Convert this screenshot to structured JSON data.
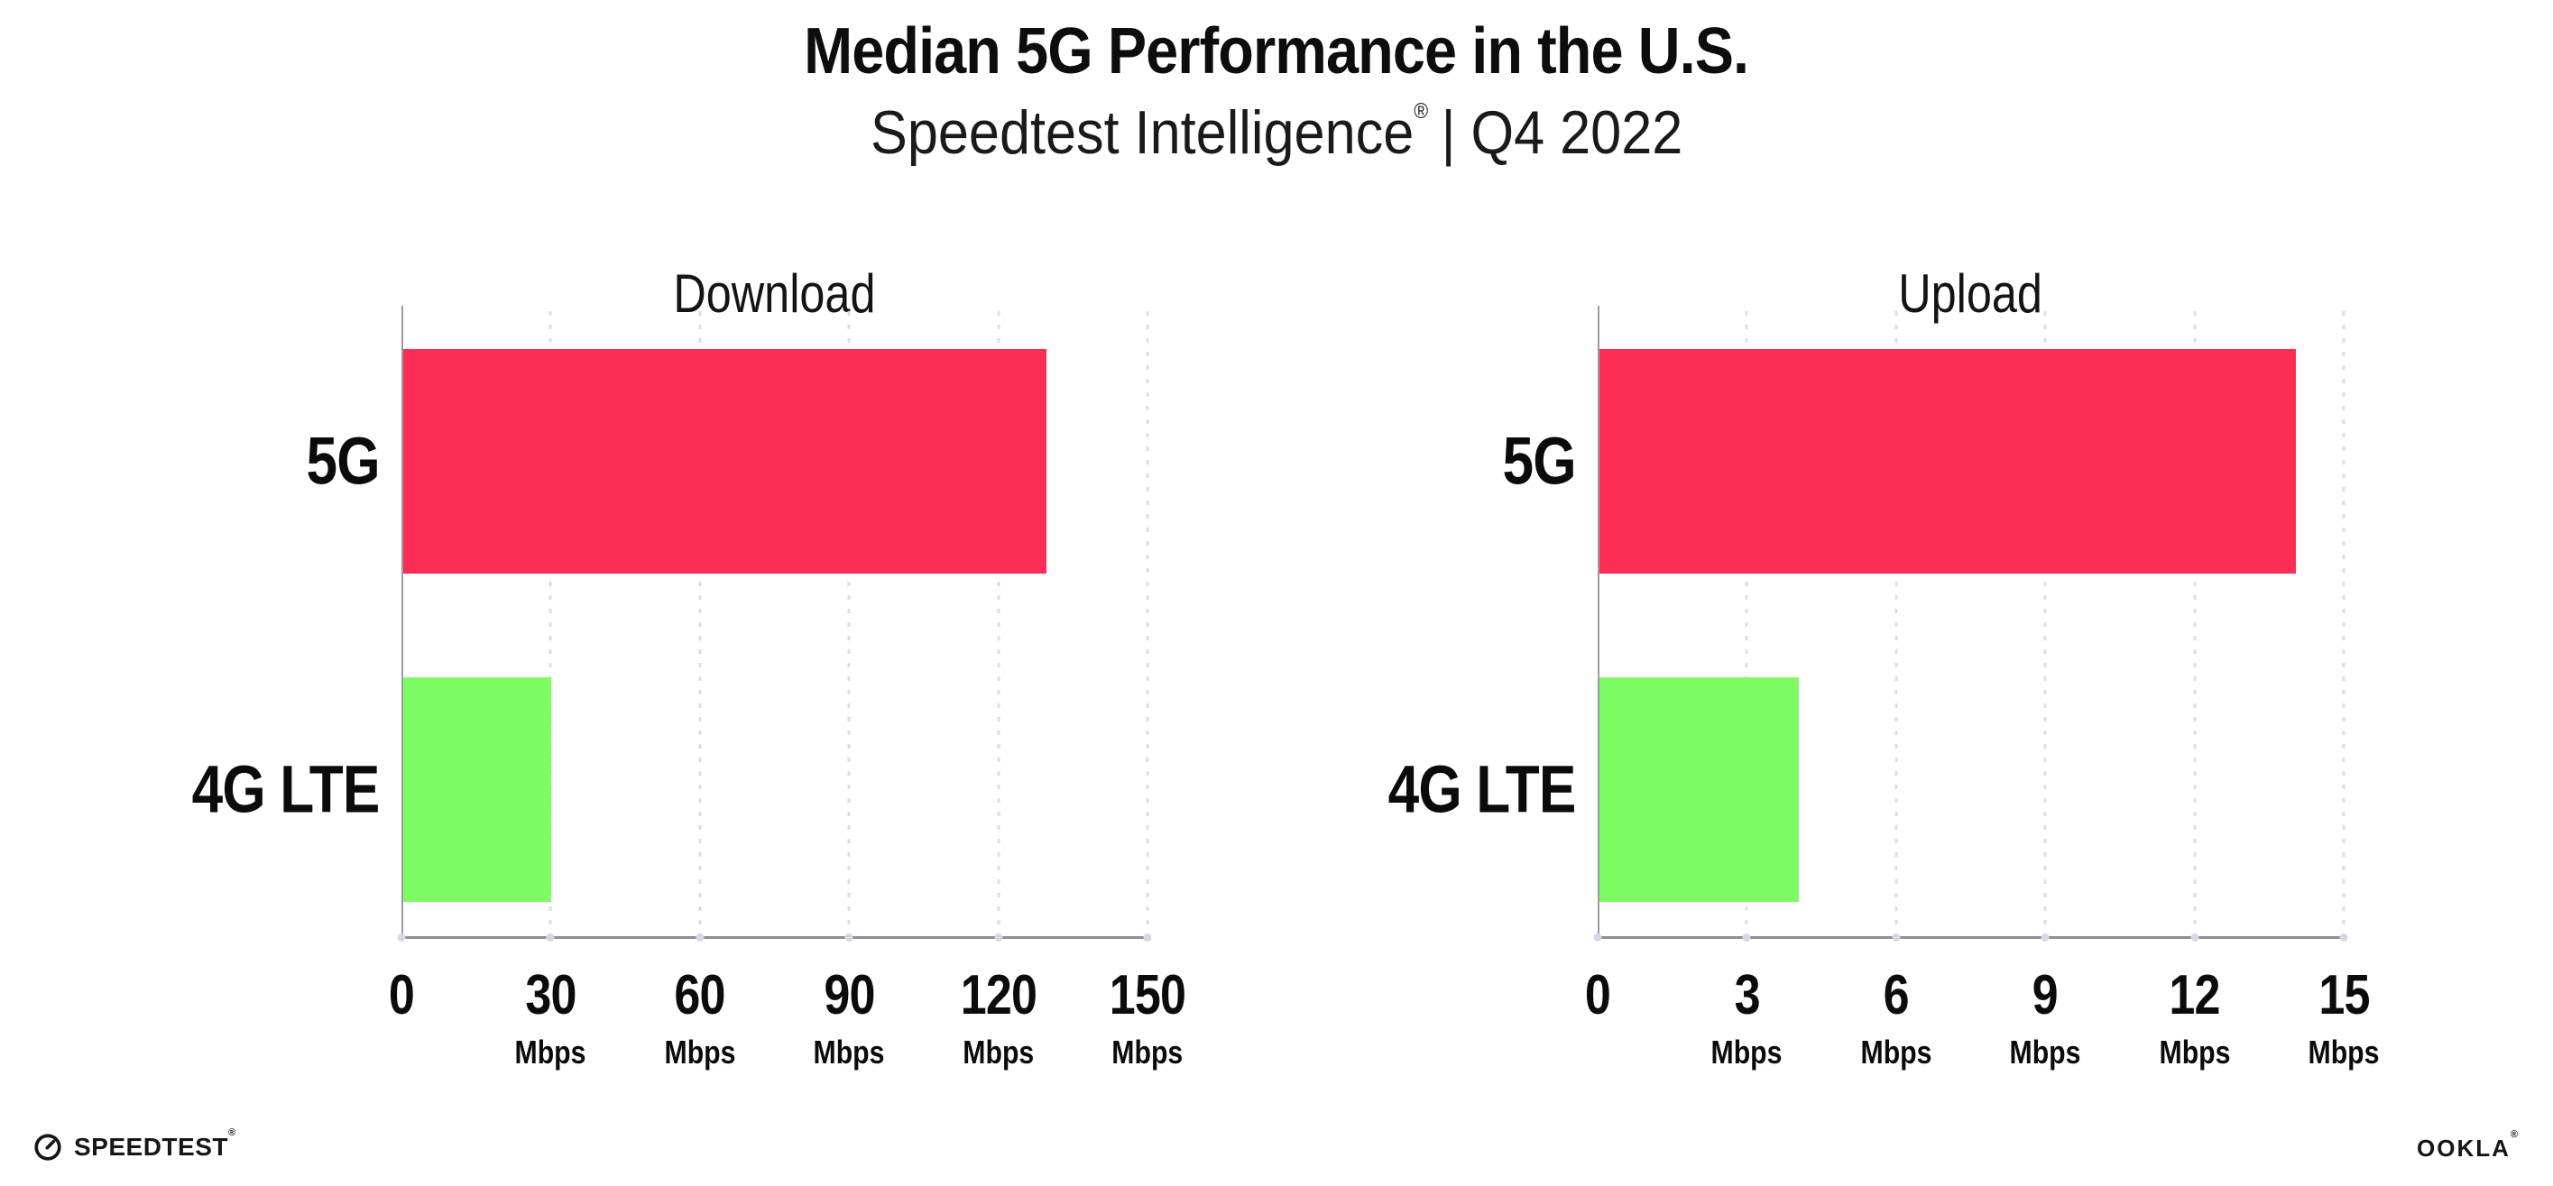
{
  "header": {
    "title": "Median 5G Performance in the U.S.",
    "subtitle_brand": "Speedtest Intelligence",
    "subtitle_mark": "®",
    "subtitle_rest": "| Q4 2022"
  },
  "chart_data": [
    {
      "type": "bar",
      "orientation": "horizontal",
      "title": "Download",
      "categories": [
        "5G",
        "4G LTE"
      ],
      "values": [
        129.3,
        29.8
      ],
      "unit": "Mbps",
      "xlabel": "",
      "ylabel": "",
      "xlim": [
        0,
        150
      ],
      "xticks": [
        0,
        30,
        60,
        90,
        120,
        150
      ],
      "bar_colors": [
        "#FD2D55",
        "#7DFC64"
      ],
      "grid": "vertical-dotted",
      "legend": "none"
    },
    {
      "type": "bar",
      "orientation": "horizontal",
      "title": "Upload",
      "categories": [
        "5G",
        "4G LTE"
      ],
      "values": [
        14,
        4
      ],
      "unit": "Mbps",
      "xlabel": "",
      "ylabel": "",
      "xlim": [
        0,
        15
      ],
      "xticks": [
        0,
        3,
        6,
        9,
        12,
        15
      ],
      "bar_colors": [
        "#FD2D55",
        "#7DFC64"
      ],
      "grid": "vertical-dotted",
      "legend": "none"
    }
  ],
  "footer": {
    "speedtest_label": "SPEEDTEST",
    "speedtest_mark": "®",
    "ookla_label": "OOKLA",
    "ookla_mark": "®"
  },
  "colors": {
    "bar_5g": "#FD2D55",
    "bar_4g_lte": "#7DFC64",
    "axis_line": "#8D8D95",
    "grid_dot": "#DCDDE8",
    "text": "#111111",
    "background": "#FFFFFF"
  }
}
